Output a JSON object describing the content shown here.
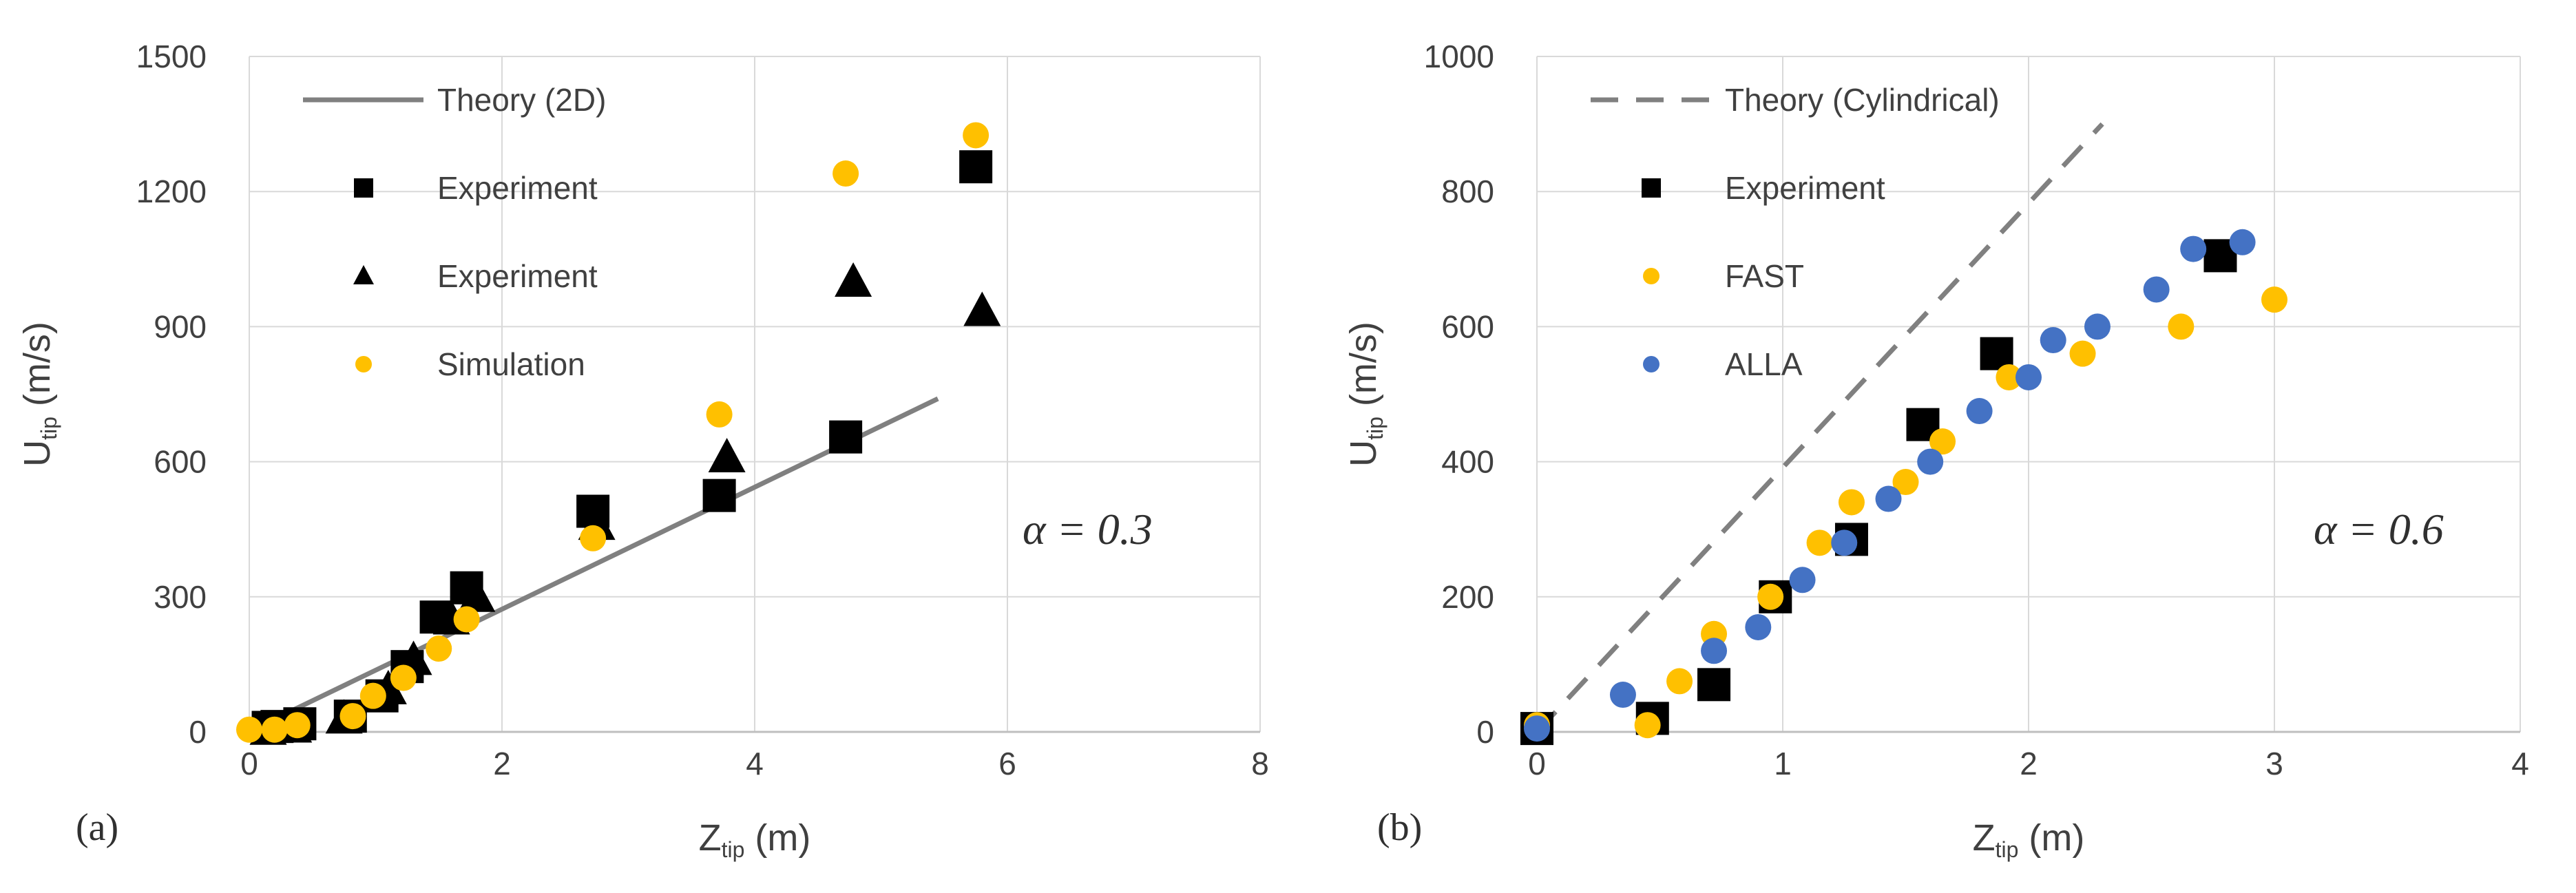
{
  "colors": {
    "gold": "#ffc000",
    "blue": "#4472c4",
    "black": "#000000",
    "theory2d": "#808080",
    "theoryCyl": "#808080"
  },
  "chart_data": [
    {
      "type": "scatter",
      "panel_label": "(a)",
      "annotation": "α = 0.3",
      "xlabel": {
        "main": "Z",
        "sub": "tip",
        "unit": " (m)"
      },
      "ylabel": {
        "main": "U",
        "sub": "tip",
        "unit": " (m/s)"
      },
      "xlim": [
        0,
        8
      ],
      "ylim": [
        0,
        1500
      ],
      "xticks": [
        "0",
        "2",
        "4",
        "6",
        "8"
      ],
      "yticks": [
        "0",
        "300",
        "600",
        "900",
        "1200",
        "1500"
      ],
      "grid": true,
      "legend_position": "top-left",
      "series": [
        {
          "name": "Theory (2D)",
          "kind": "line",
          "style": "solid",
          "color": "#808080",
          "points": [
            [
              0.1,
              15
            ],
            [
              5.45,
              740
            ]
          ]
        },
        {
          "name": "Experiment",
          "kind": "square",
          "color": "#000000",
          "points": [
            [
              0.15,
              10
            ],
            [
              0.22,
              12
            ],
            [
              0.4,
              18
            ],
            [
              0.8,
              35
            ],
            [
              1.05,
              80
            ],
            [
              1.25,
              145
            ],
            [
              1.48,
              255
            ],
            [
              1.72,
              320
            ],
            [
              2.72,
              490
            ],
            [
              3.72,
              525
            ],
            [
              4.72,
              655
            ],
            [
              5.75,
              1255
            ]
          ]
        },
        {
          "name": "Experiment",
          "kind": "triangle",
          "color": "#000000",
          "points": [
            [
              0.15,
              5
            ],
            [
              0.35,
              10
            ],
            [
              0.75,
              30
            ],
            [
              1.1,
              95
            ],
            [
              1.3,
              160
            ],
            [
              1.6,
              250
            ],
            [
              1.8,
              300
            ],
            [
              2.75,
              460
            ],
            [
              3.78,
              610
            ],
            [
              4.78,
              1000
            ],
            [
              5.8,
              935
            ]
          ]
        },
        {
          "name": "Simulation",
          "kind": "circle",
          "color": "#ffc000",
          "points": [
            [
              0.0,
              5
            ],
            [
              0.2,
              5
            ],
            [
              0.38,
              15
            ],
            [
              0.82,
              35
            ],
            [
              0.98,
              80
            ],
            [
              1.22,
              120
            ],
            [
              1.5,
              185
            ],
            [
              1.72,
              250
            ],
            [
              2.72,
              430
            ],
            [
              3.72,
              705
            ],
            [
              4.72,
              1240
            ],
            [
              5.75,
              1325
            ]
          ]
        }
      ]
    },
    {
      "type": "scatter",
      "panel_label": "(b)",
      "annotation": "α = 0.6",
      "xlabel": {
        "main": "Z",
        "sub": "tip",
        "unit": " (m)"
      },
      "ylabel": {
        "main": "U",
        "sub": "tip",
        "unit": " (m/s)"
      },
      "xlim": [
        0,
        4
      ],
      "ylim": [
        0,
        1000
      ],
      "xticks": [
        "0",
        "1",
        "2",
        "3",
        "4"
      ],
      "yticks": [
        "0",
        "200",
        "400",
        "600",
        "800",
        "1000"
      ],
      "grid": true,
      "legend_position": "top-left",
      "series": [
        {
          "name": "Theory (Cylindrical)",
          "kind": "line",
          "style": "dashed",
          "color": "#808080",
          "points": [
            [
              0.0,
              0
            ],
            [
              2.3,
              900
            ]
          ]
        },
        {
          "name": "Experiment",
          "kind": "square",
          "color": "#000000",
          "points": [
            [
              0.0,
              5
            ],
            [
              0.47,
              20
            ],
            [
              0.72,
              70
            ],
            [
              0.97,
              200
            ],
            [
              1.28,
              285
            ],
            [
              1.57,
              455
            ],
            [
              1.87,
              560
            ],
            [
              2.78,
              705
            ]
          ]
        },
        {
          "name": "FAST",
          "kind": "circle",
          "color": "#ffc000",
          "points": [
            [
              0.0,
              10
            ],
            [
              0.45,
              10
            ],
            [
              0.58,
              75
            ],
            [
              0.72,
              145
            ],
            [
              0.95,
              200
            ],
            [
              1.15,
              280
            ],
            [
              1.28,
              340
            ],
            [
              1.5,
              370
            ],
            [
              1.65,
              430
            ],
            [
              1.92,
              525
            ],
            [
              2.22,
              560
            ],
            [
              2.62,
              600
            ],
            [
              3.0,
              640
            ]
          ]
        },
        {
          "name": "ALLA",
          "kind": "circle",
          "color": "#4472c4",
          "points": [
            [
              0.0,
              5
            ],
            [
              0.35,
              55
            ],
            [
              0.72,
              120
            ],
            [
              0.9,
              155
            ],
            [
              1.08,
              225
            ],
            [
              1.25,
              280
            ],
            [
              1.43,
              345
            ],
            [
              1.6,
              400
            ],
            [
              1.8,
              475
            ],
            [
              2.0,
              525
            ],
            [
              2.1,
              580
            ],
            [
              2.28,
              600
            ],
            [
              2.52,
              655
            ],
            [
              2.67,
              715
            ],
            [
              2.87,
              725
            ]
          ]
        }
      ]
    }
  ]
}
